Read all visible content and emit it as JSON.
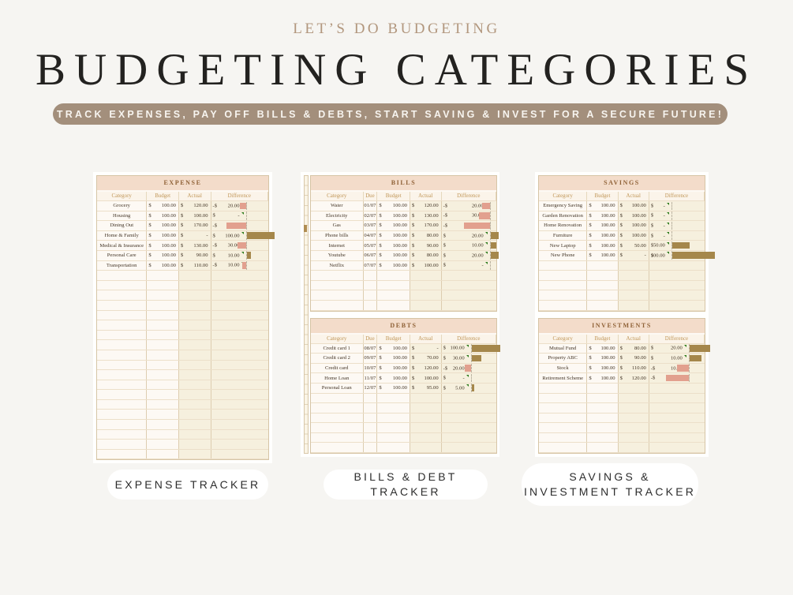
{
  "header": {
    "eyebrow": "LET’S DO BUDGETING",
    "title": "BUDGETING CATEGORIES",
    "banner": "TRACK EXPENSES, PAY OFF BILLS & DEBTS, START SAVING & INVEST FOR A SECURE FUTURE!"
  },
  "labels": {
    "expense": "EXPENSE TRACKER",
    "bills": "BILLS & DEBT TRACKER",
    "savings_line1": "SAVINGS &",
    "savings_line2": "INVESTMENT TRACKER"
  },
  "colors": {
    "page_background": "#f6f5f2",
    "banner_background": "#a38f7c",
    "table_header_band": "#f3dcca",
    "bar_negative_pink": "#e2a08e",
    "bar_positive_brown": "#a5874b",
    "corner_marker_green": "#2f7d1e"
  },
  "tables": {
    "expense": {
      "title": "EXPENSE",
      "columns": [
        "Category",
        "Budget",
        "Actual",
        "Difference"
      ],
      "empty_rows": 19,
      "rows": [
        {
          "cat": "Grocery",
          "bud": "100.00",
          "act": "120.00",
          "dcur": "-$",
          "dval": "20.00",
          "bar": -20,
          "bw": 8
        },
        {
          "cat": "Housing",
          "bud": "100.00",
          "act": "100.00",
          "dcur": "$",
          "dval": "-",
          "bar": 0,
          "bw": 0
        },
        {
          "cat": "Dining Out",
          "bud": "100.00",
          "act": "170.00",
          "dcur": "-$",
          "dval": "70.00",
          "bar": -70,
          "bw": 25
        },
        {
          "cat": "Home & Family",
          "bud": "100.00",
          "act": "-",
          "dcur": "$",
          "dval": "100.00",
          "bar": 100,
          "bw": 35
        },
        {
          "cat": "Medical & Insurance",
          "bud": "100.00",
          "act": "130.00",
          "dcur": "-$",
          "dval": "30.00",
          "bar": -30,
          "bw": 11
        },
        {
          "cat": "Personal Care",
          "bud": "100.00",
          "act": "90.00",
          "dcur": "$",
          "dval": "10.00",
          "bar": 10,
          "bw": 5
        },
        {
          "cat": "Transportation",
          "bud": "100.00",
          "act": "110.00",
          "dcur": "-$",
          "dval": "10.00",
          "bar": -10,
          "bw": 5
        }
      ]
    },
    "bills": {
      "title": "BILLS",
      "columns": [
        "Category",
        "Due",
        "Budget",
        "Actual",
        "Difference"
      ],
      "empty_rows": 4,
      "rows": [
        {
          "cat": "Water",
          "due": "01/07",
          "bud": "100.00",
          "act": "120.00",
          "dcur": "-$",
          "dval": "20.00",
          "bar": -20,
          "bw": 10
        },
        {
          "cat": "Electricity",
          "due": "02/07",
          "bud": "100.00",
          "act": "130.00",
          "dcur": "-$",
          "dval": "30.00",
          "bar": -30,
          "bw": 14
        },
        {
          "cat": "Gas",
          "due": "03/07",
          "bud": "100.00",
          "act": "170.00",
          "dcur": "-$",
          "dval": "70.00",
          "bar": -70,
          "bw": 33
        },
        {
          "cat": "Phone bills",
          "due": "04/07",
          "bud": "100.00",
          "act": "80.00",
          "dcur": "$",
          "dval": "20.00",
          "bar": 20,
          "bw": 10
        },
        {
          "cat": "Internet",
          "due": "05/07",
          "bud": "100.00",
          "act": "90.00",
          "dcur": "$",
          "dval": "10.00",
          "bar": 10,
          "bw": 7
        },
        {
          "cat": "Youtube",
          "due": "06/07",
          "bud": "100.00",
          "act": "80.00",
          "dcur": "$",
          "dval": "20.00",
          "bar": 20,
          "bw": 10
        },
        {
          "cat": "Netflix",
          "due": "07/07",
          "bud": "100.00",
          "act": "100.00",
          "dcur": "$",
          "dval": "-",
          "bar": 0,
          "bw": 0
        }
      ]
    },
    "debts": {
      "title": "DEBTS",
      "columns": [
        "Category",
        "Due",
        "Budget",
        "Actual",
        "Difference"
      ],
      "empty_rows": 6,
      "rows": [
        {
          "cat": "Credit card 1",
          "due": "08/07",
          "bud": "100.00",
          "act": "-",
          "dcur": "$",
          "dval": "100.00",
          "bar": 100,
          "bw": 36
        },
        {
          "cat": "Credit card 2",
          "due": "09/07",
          "bud": "100.00",
          "act": "70.00",
          "dcur": "$",
          "dval": "30.00",
          "bar": 30,
          "bw": 12
        },
        {
          "cat": "Credit card",
          "due": "10/07",
          "bud": "100.00",
          "act": "120.00",
          "dcur": "-$",
          "dval": "20.00",
          "bar": -20,
          "bw": 8
        },
        {
          "cat": "Home Loan",
          "due": "11/07",
          "bud": "100.00",
          "act": "100.00",
          "dcur": "$",
          "dval": "-",
          "bar": 0,
          "bw": 0
        },
        {
          "cat": "Personal Loan",
          "due": "12/07",
          "bud": "100.00",
          "act": "95.00",
          "dcur": "$",
          "dval": "5.00",
          "bar": 5,
          "bw": 3
        }
      ]
    },
    "savings": {
      "title": "SAVINGS",
      "columns": [
        "Category",
        "Budget",
        "Actual",
        "Difference"
      ],
      "empty_rows": 5,
      "rows": [
        {
          "cat": "Emergency Saving",
          "bud": "100.00",
          "act": "100.00",
          "dcur": "$",
          "dval": "-",
          "bar": 0,
          "bw": 0
        },
        {
          "cat": "Garden Renovation",
          "bud": "100.00",
          "act": "100.00",
          "dcur": "$",
          "dval": "-",
          "bar": 0,
          "bw": 0
        },
        {
          "cat": "Home Renovation",
          "bud": "100.00",
          "act": "100.00",
          "dcur": "$",
          "dval": "-",
          "bar": 0,
          "bw": 0
        },
        {
          "cat": "Furniture",
          "bud": "100.00",
          "act": "100.00",
          "dcur": "$",
          "dval": "-",
          "bar": 0,
          "bw": 0
        },
        {
          "cat": "New Laptop",
          "bud": "100.00",
          "act": "50.00",
          "dcur": "$",
          "dval": "50.00",
          "bar": 50,
          "bw": 22
        },
        {
          "cat": "New Phone",
          "bud": "100.00",
          "act": "-",
          "dcur": "$",
          "dval": "100.00",
          "bar": 100,
          "bw": 54
        }
      ]
    },
    "investments": {
      "title": "INVESTMENTS",
      "columns": [
        "Category",
        "Budget",
        "Actual",
        "Difference"
      ],
      "empty_rows": 7,
      "rows": [
        {
          "cat": "Mutual Fund",
          "bud": "100.00",
          "act": "80.00",
          "dcur": "$",
          "dval": "20.00",
          "bar": 20,
          "bw": 26
        },
        {
          "cat": "Property ABC",
          "bud": "100.00",
          "act": "90.00",
          "dcur": "$",
          "dval": "10.00",
          "bar": 10,
          "bw": 15
        },
        {
          "cat": "Stock",
          "bud": "100.00",
          "act": "110.00",
          "dcur": "-$",
          "dval": "10.00",
          "bar": -10,
          "bw": 15
        },
        {
          "cat": "Retirement Scheme",
          "bud": "100.00",
          "act": "120.00",
          "dcur": "-$",
          "dval": "20.00",
          "bar": -20,
          "bw": 29
        }
      ]
    }
  }
}
